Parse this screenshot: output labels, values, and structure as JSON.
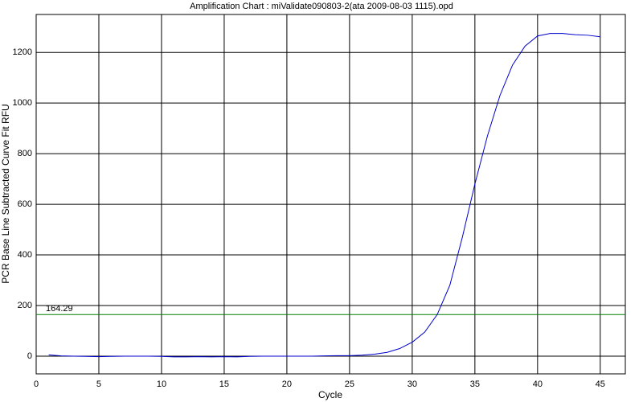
{
  "chart_data": {
    "type": "line",
    "title": "Amplification Chart : miValidate090803-2(ata 2009-08-03 1115).opd",
    "x_label": "Cycle",
    "y_label": "PCR Base Line Subtracted Curve Fit RFU",
    "x": [
      1,
      2,
      3,
      4,
      5,
      6,
      7,
      8,
      9,
      10,
      11,
      12,
      13,
      14,
      15,
      16,
      17,
      18,
      19,
      20,
      21,
      22,
      23,
      24,
      25,
      26,
      27,
      28,
      29,
      30,
      31,
      32,
      33,
      34,
      35,
      36,
      37,
      38,
      39,
      40,
      41,
      42,
      43,
      44,
      45
    ],
    "series": [
      {
        "color": "#0000cc",
        "values": [
          5,
          1,
          0,
          -1,
          -2,
          -1,
          0,
          0,
          0,
          -1,
          -3,
          -3,
          -2,
          -3,
          -2,
          -3,
          -1,
          0,
          0,
          0,
          0,
          0,
          1,
          2,
          2,
          4,
          8,
          15,
          30,
          55,
          95,
          165,
          280,
          470,
          680,
          870,
          1030,
          1150,
          1225,
          1265,
          1275,
          1275,
          1270,
          1268,
          1262
        ]
      }
    ],
    "threshold": 164.29,
    "threshold_color": "#008000",
    "xlim": [
      0,
      47
    ],
    "xticks": [
      0,
      5,
      10,
      15,
      20,
      25,
      30,
      35,
      40,
      45
    ],
    "ylim": [
      -70,
      1350
    ],
    "yticks": [
      0,
      200,
      400,
      600,
      800,
      1000,
      1200
    ],
    "grid": true
  }
}
